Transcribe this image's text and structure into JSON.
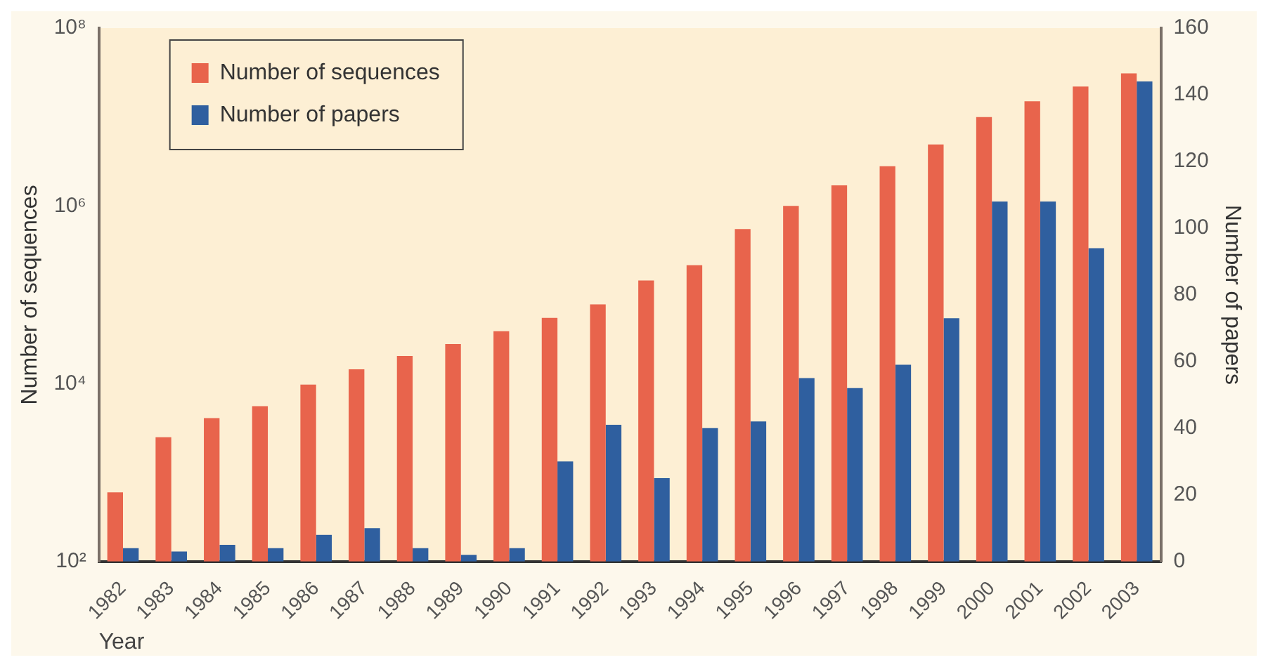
{
  "chart_data": {
    "type": "bar",
    "xlabel": "Year",
    "ylabel": "Number of sequences",
    "y2label": "Number of papers",
    "categories": [
      "1982",
      "1983",
      "1984",
      "1985",
      "1986",
      "1987",
      "1988",
      "1989",
      "1990",
      "1991",
      "1992",
      "1993",
      "1994",
      "1995",
      "1996",
      "1997",
      "1998",
      "1999",
      "2000",
      "2001",
      "2002",
      "2003"
    ],
    "series": [
      {
        "name": "Number of sequences",
        "color": "#e8644c",
        "values": [
          600,
          2500,
          4100,
          5600,
          9800,
          14500,
          20500,
          28000,
          39000,
          55000,
          78000,
          145000,
          215000,
          550000,
          1000000,
          1700000,
          2800000,
          4900000,
          10000000,
          15000000,
          22000000,
          31000000
        ]
      },
      {
        "name": "Number of papers",
        "color": "#2f5f9f",
        "axis": "y2",
        "values": [
          4,
          3,
          5,
          4,
          8,
          10,
          4,
          2,
          4,
          30,
          41,
          25,
          40,
          42,
          55,
          52,
          59,
          73,
          108,
          108,
          94,
          144
        ]
      }
    ],
    "log": "y",
    "ylim": [
      100,
      100000000
    ],
    "yticks": [
      {
        "value": 100,
        "label": "10²"
      },
      {
        "value": 10000,
        "label": "10⁴"
      },
      {
        "value": 1000000,
        "label": "10⁶"
      },
      {
        "value": 100000000,
        "label": "10⁸"
      }
    ],
    "y2lim": [
      0,
      160
    ],
    "y2ticks": [
      0,
      20,
      40,
      60,
      80,
      100,
      120,
      140,
      160
    ],
    "grid": false,
    "legend": "top left"
  }
}
